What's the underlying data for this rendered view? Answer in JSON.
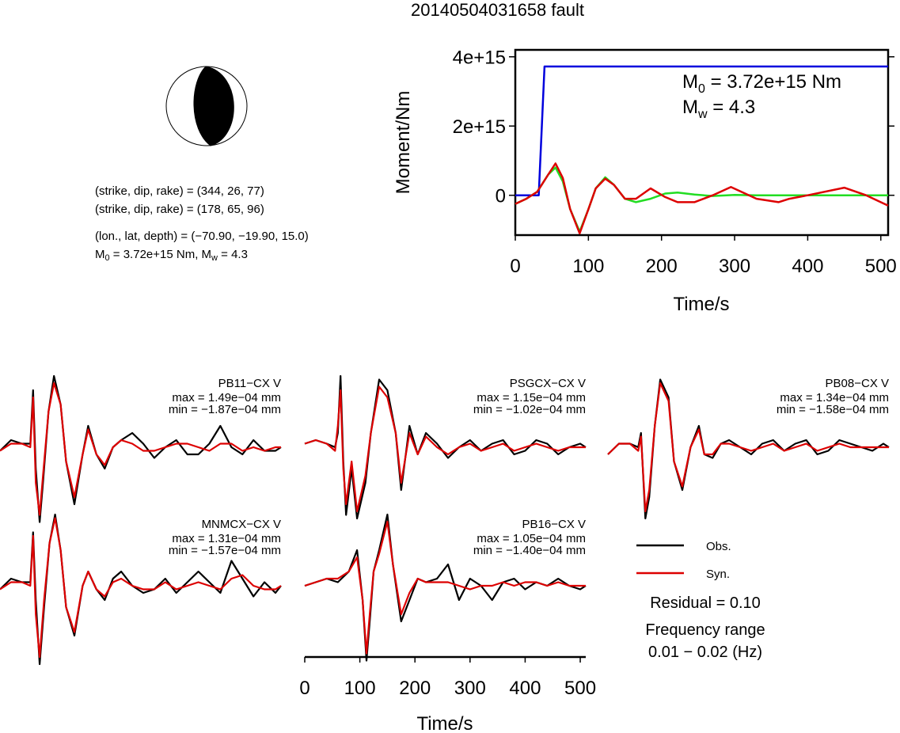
{
  "title": "20140504031658 fault",
  "mechanism": {
    "line1": "(strike, dip, rake) = (344, 26, 77)",
    "line2": "(strike, dip, rake) = (178, 65, 96)",
    "location": "(lon., lat, depth) = (−70.90, −19.90, 15.0)",
    "m0_prefix": "M",
    "m0_sub": "0",
    "m0_value": " = 3.72e+15 Nm, M",
    "mw_sub": "w",
    "mw_value": " = 4.3"
  },
  "colors": {
    "moment_rate_cumulative": "#0000dd",
    "observed": "#000000",
    "synthetic": "#dd0000",
    "reference": "#22dd22"
  },
  "chart_data": [
    {
      "type": "line",
      "name": "moment-function",
      "xlabel": "Time/s",
      "ylabel": "Moment/Nm",
      "xlim": [
        0,
        510
      ],
      "ylim": [
        -1150000000000000.0,
        4200000000000000.0
      ],
      "xticks": [
        0,
        100,
        200,
        300,
        400,
        500
      ],
      "yticks": [
        0,
        2000000000000000.0,
        4000000000000000.0
      ],
      "ytick_labels": [
        "0",
        "2e+15",
        "4e+15"
      ],
      "annotation_m0": {
        "prefix": "M",
        "sub": "0",
        "value": " = 3.72e+15 Nm"
      },
      "annotation_mw": {
        "prefix": "M",
        "sub": "w",
        "value": " = 4.3"
      },
      "series": [
        {
          "color": "blue",
          "x": [
            0,
            32,
            40,
            510
          ],
          "y": [
            0,
            0,
            3720000000000000.0,
            3720000000000000.0
          ]
        },
        {
          "color": "green",
          "x": [
            0,
            15,
            30,
            45,
            55,
            65,
            75,
            88,
            100,
            110,
            123,
            135,
            150,
            165,
            185,
            205,
            222,
            245,
            270,
            300,
            330,
            360,
            400,
            450,
            510
          ],
          "y": [
            -250000000000000.0,
            -100000000000000.0,
            100000000000000.0,
            600000000000000.0,
            800000000000000.0,
            400000000000000.0,
            -400000000000000.0,
            -1050000000000000.0,
            -400000000000000.0,
            200000000000000.0,
            520000000000000.0,
            300000000000000.0,
            -100000000000000.0,
            -200000000000000.0,
            -100000000000000.0,
            50000000000000.0,
            80000000000000.0,
            20000000000000.0,
            -20000000000000.0,
            10000000000000.0,
            0,
            0,
            0,
            0,
            0
          ]
        },
        {
          "color": "red",
          "x": [
            0,
            15,
            30,
            45,
            55,
            65,
            75,
            88,
            100,
            110,
            123,
            135,
            150,
            165,
            185,
            205,
            222,
            245,
            270,
            295,
            330,
            360,
            375,
            400,
            450,
            480,
            510
          ],
          "y": [
            -250000000000000.0,
            -100000000000000.0,
            100000000000000.0,
            600000000000000.0,
            920000000000000.0,
            500000000000000.0,
            -400000000000000.0,
            -1100000000000000.0,
            -400000000000000.0,
            200000000000000.0,
            480000000000000.0,
            300000000000000.0,
            -100000000000000.0,
            -100000000000000.0,
            200000000000000.0,
            -50000000000000.0,
            -200000000000000.0,
            -200000000000000.0,
            0,
            240000000000000.0,
            -100000000000000.0,
            -200000000000000.0,
            -100000000000000.0,
            0,
            220000000000000.0,
            0,
            -300000000000000.0
          ]
        }
      ]
    },
    {
      "type": "line",
      "name": "waveforms",
      "xlabel": "Time/s",
      "xlim": [
        0,
        510
      ],
      "xticks": [
        0,
        100,
        200,
        300,
        400,
        500
      ],
      "ylim": [
        -1,
        1
      ],
      "legend": {
        "observed": "Obs.",
        "synthetic": "Syn."
      },
      "residual": "Residual = 0.10",
      "frequency_title": "Frequency range",
      "frequency_range": "0.01 − 0.02 (Hz)",
      "stations": [
        {
          "name": "PB11−CX V",
          "max": "max = 1.49e−04 mm",
          "min": "min = −1.87e−04 mm",
          "obs": {
            "x": [
              0,
              20,
              40,
              55,
              60,
              65,
              72,
              78,
              88,
              98,
              110,
              120,
              135,
              150,
              160,
              175,
              190,
              205,
              220,
              240,
              260,
              280,
              300,
              320,
              340,
              360,
              380,
              400,
              420,
              440,
              460,
              480,
              500,
              510
            ],
            "y": [
              -0.05,
              0.1,
              0.05,
              0.05,
              0.8,
              -0.3,
              -1.05,
              -0.5,
              0.5,
              1.0,
              0.6,
              -0.2,
              -0.8,
              -0.1,
              0.3,
              -0.1,
              -0.3,
              0.0,
              0.1,
              0.2,
              0.05,
              -0.15,
              0.0,
              0.1,
              -0.1,
              -0.1,
              0.05,
              0.3,
              0.0,
              -0.1,
              0.1,
              -0.05,
              -0.05,
              0.0
            ]
          },
          "syn": {
            "x": [
              0,
              20,
              40,
              55,
              60,
              65,
              72,
              78,
              88,
              98,
              110,
              120,
              135,
              150,
              160,
              175,
              190,
              205,
              220,
              240,
              260,
              280,
              300,
              320,
              340,
              360,
              380,
              400,
              420,
              440,
              460,
              480,
              500,
              510
            ],
            "y": [
              -0.05,
              0.05,
              0.05,
              0.0,
              0.7,
              -0.5,
              -0.95,
              -0.4,
              0.5,
              0.9,
              0.6,
              -0.2,
              -0.7,
              -0.1,
              0.25,
              -0.1,
              -0.25,
              0.0,
              0.1,
              0.05,
              -0.05,
              -0.05,
              0.0,
              0.05,
              0.05,
              0.0,
              -0.05,
              0.05,
              0.05,
              -0.05,
              0.0,
              -0.05,
              0.0,
              0.0
            ]
          }
        },
        {
          "name": "PSGCX−CX V",
          "max": "max = 1.15e−04 mm",
          "min": "min = −1.02e−04 mm",
          "obs": {
            "x": [
              0,
              20,
              40,
              55,
              60,
              65,
              70,
              75,
              85,
              95,
              110,
              120,
              135,
              150,
              165,
              175,
              190,
              205,
              220,
              240,
              260,
              280,
              300,
              320,
              340,
              360,
              380,
              400,
              420,
              440,
              460,
              480,
              500,
              510
            ],
            "y": [
              0.05,
              0.1,
              0.05,
              0.0,
              0.2,
              1.0,
              -0.2,
              -0.95,
              -0.3,
              -1.0,
              -0.5,
              0.2,
              0.95,
              0.8,
              0.2,
              -0.6,
              0.3,
              -0.1,
              0.2,
              0.05,
              -0.15,
              0.0,
              0.1,
              -0.05,
              0.05,
              0.1,
              -0.1,
              -0.05,
              0.1,
              0.05,
              -0.1,
              0.0,
              0.05,
              0.0
            ]
          },
          "syn": {
            "x": [
              0,
              20,
              40,
              55,
              60,
              65,
              70,
              75,
              85,
              95,
              110,
              120,
              135,
              150,
              165,
              175,
              190,
              205,
              220,
              240,
              260,
              280,
              300,
              320,
              340,
              360,
              380,
              400,
              420,
              440,
              460,
              480,
              500,
              510
            ],
            "y": [
              0.05,
              0.1,
              0.05,
              -0.05,
              0.3,
              0.8,
              -0.3,
              -0.8,
              -0.2,
              -0.9,
              -0.4,
              0.2,
              0.85,
              0.7,
              0.2,
              -0.5,
              0.2,
              -0.1,
              0.15,
              0.0,
              -0.1,
              0.0,
              0.05,
              -0.05,
              0.0,
              0.05,
              -0.05,
              0.0,
              0.05,
              0.0,
              -0.05,
              0.0,
              0.0,
              0.0
            ]
          }
        },
        {
          "name": "PB08−CX V",
          "max": "max = 1.34e−04 mm",
          "min": "min = −1.58e−04 mm",
          "obs": {
            "x": [
              0,
              20,
              40,
              55,
              60,
              68,
              75,
              85,
              95,
              110,
              120,
              135,
              150,
              165,
              175,
              190,
              205,
              220,
              240,
              260,
              280,
              300,
              320,
              340,
              360,
              380,
              400,
              420,
              440,
              460,
              480,
              500,
              510
            ],
            "y": [
              -0.1,
              0.05,
              0.05,
              0.0,
              0.2,
              -1.0,
              -0.7,
              0.3,
              0.95,
              0.7,
              -0.2,
              -0.6,
              0.0,
              0.3,
              -0.1,
              -0.15,
              0.05,
              0.1,
              0.0,
              -0.1,
              0.05,
              0.1,
              -0.05,
              0.05,
              0.1,
              -0.1,
              -0.05,
              0.1,
              0.05,
              0.0,
              -0.05,
              0.05,
              0.0
            ]
          },
          "syn": {
            "x": [
              0,
              20,
              40,
              55,
              60,
              68,
              75,
              85,
              95,
              110,
              120,
              135,
              150,
              165,
              175,
              190,
              205,
              220,
              240,
              260,
              280,
              300,
              320,
              340,
              360,
              380,
              400,
              420,
              440,
              460,
              480,
              500,
              510
            ],
            "y": [
              -0.1,
              0.05,
              0.05,
              -0.05,
              0.15,
              -0.9,
              -0.6,
              0.3,
              0.9,
              0.65,
              -0.2,
              -0.55,
              0.0,
              0.25,
              -0.1,
              -0.1,
              0.05,
              0.05,
              0.0,
              -0.05,
              0.0,
              0.05,
              -0.05,
              0.0,
              0.05,
              -0.05,
              0.0,
              0.05,
              0.0,
              0.0,
              0.0,
              0.0,
              0.0
            ]
          }
        },
        {
          "name": "MNMCX−CX V",
          "max": "max = 1.31e−04 mm",
          "min": "min = −1.57e−04 mm",
          "obs": {
            "x": [
              0,
              20,
              40,
              55,
              60,
              65,
              72,
              80,
              90,
              100,
              110,
              120,
              135,
              150,
              160,
              175,
              190,
              205,
              220,
              240,
              260,
              280,
              300,
              320,
              340,
              360,
              380,
              400,
              420,
              440,
              460,
              480,
              500,
              510
            ],
            "y": [
              -0.05,
              0.1,
              0.05,
              0.05,
              0.75,
              -0.2,
              -1.1,
              -0.3,
              0.6,
              1.0,
              0.5,
              -0.3,
              -0.7,
              0.0,
              0.2,
              -0.05,
              -0.2,
              0.1,
              0.2,
              0.0,
              -0.1,
              -0.05,
              0.1,
              -0.1,
              0.05,
              0.2,
              0.05,
              -0.1,
              0.35,
              0.1,
              -0.15,
              0.05,
              -0.1,
              0.0
            ]
          },
          "syn": {
            "x": [
              0,
              20,
              40,
              55,
              60,
              65,
              72,
              80,
              90,
              100,
              110,
              120,
              135,
              150,
              160,
              175,
              190,
              205,
              220,
              240,
              260,
              280,
              300,
              320,
              340,
              360,
              380,
              400,
              420,
              440,
              460,
              480,
              500,
              510
            ],
            "y": [
              -0.05,
              0.05,
              0.05,
              0.0,
              0.7,
              -0.4,
              -1.0,
              -0.2,
              0.6,
              0.95,
              0.5,
              -0.3,
              -0.65,
              0.0,
              0.2,
              -0.05,
              -0.15,
              0.05,
              0.1,
              0.0,
              -0.05,
              -0.05,
              0.05,
              -0.05,
              0.0,
              0.05,
              0.0,
              -0.05,
              0.1,
              0.15,
              0.0,
              -0.05,
              -0.05,
              0.0
            ]
          }
        },
        {
          "name": "PB16−CX V",
          "max": "max = 1.05e−04 mm",
          "min": "min = −1.40e−04 mm",
          "obs": {
            "x": [
              0,
              20,
              40,
              60,
              80,
              95,
              105,
              112,
              118,
              125,
              135,
              150,
              160,
              175,
              190,
              205,
              220,
              240,
              260,
              280,
              300,
              320,
              340,
              360,
              380,
              400,
              420,
              440,
              460,
              480,
              500,
              510
            ],
            "y": [
              0.0,
              0.05,
              0.1,
              0.05,
              0.2,
              0.5,
              -0.2,
              -1.05,
              -0.5,
              0.2,
              0.5,
              1.0,
              0.3,
              -0.5,
              -0.2,
              0.1,
              0.05,
              0.1,
              0.3,
              -0.2,
              0.1,
              0.0,
              -0.2,
              0.05,
              0.1,
              -0.05,
              0.05,
              0.0,
              0.1,
              0.0,
              -0.05,
              0.0
            ]
          },
          "syn": {
            "x": [
              0,
              20,
              40,
              60,
              80,
              95,
              105,
              112,
              118,
              125,
              135,
              150,
              160,
              175,
              190,
              205,
              220,
              240,
              260,
              280,
              300,
              320,
              340,
              360,
              380,
              400,
              420,
              440,
              460,
              480,
              500,
              510
            ],
            "y": [
              0.0,
              0.05,
              0.1,
              0.1,
              0.2,
              0.4,
              -0.2,
              -0.95,
              -0.4,
              0.2,
              0.45,
              0.9,
              0.3,
              -0.4,
              -0.1,
              0.1,
              0.05,
              0.05,
              0.05,
              0.0,
              -0.05,
              0.0,
              0.0,
              0.05,
              0.0,
              0.05,
              0.05,
              0.0,
              0.05,
              0.0,
              0.0,
              0.0
            ]
          }
        }
      ]
    }
  ]
}
